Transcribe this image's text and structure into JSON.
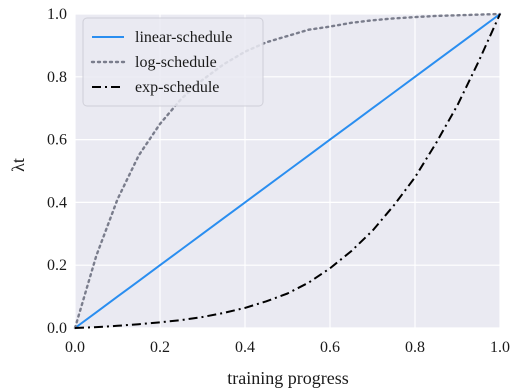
{
  "chart_data": {
    "type": "line",
    "xlabel": "training progress",
    "ylabel": "λt",
    "xlim": [
      0.0,
      1.0
    ],
    "ylim": [
      0.0,
      1.0
    ],
    "x_ticks": [
      0.0,
      0.2,
      0.4,
      0.6,
      0.8,
      1.0
    ],
    "x_tick_labels": [
      "0.0",
      "0.2",
      "0.4",
      "0.6",
      "0.8",
      "1.0"
    ],
    "y_ticks": [
      0.0,
      0.2,
      0.4,
      0.6,
      0.8,
      1.0
    ],
    "y_tick_labels": [
      "0.0",
      "0.2",
      "0.4",
      "0.6",
      "0.8",
      "1.0"
    ],
    "grid": true,
    "background": "#eaeaf2",
    "legend_position": "top-left",
    "x": [
      0.0,
      0.05,
      0.1,
      0.15,
      0.2,
      0.25,
      0.3,
      0.35,
      0.4,
      0.45,
      0.5,
      0.55,
      0.6,
      0.65,
      0.7,
      0.75,
      0.8,
      0.85,
      0.9,
      0.95,
      1.0
    ],
    "series": [
      {
        "name": "linear-schedule",
        "color": "#2a8ef0",
        "style": "solid",
        "values": [
          0.0,
          0.05,
          0.1,
          0.15,
          0.2,
          0.25,
          0.3,
          0.35,
          0.4,
          0.45,
          0.5,
          0.55,
          0.6,
          0.65,
          0.7,
          0.75,
          0.8,
          0.85,
          0.9,
          0.95,
          1.0
        ]
      },
      {
        "name": "log-schedule",
        "color": "#7a7d8c",
        "style": "dotted",
        "values": [
          0.0,
          0.23,
          0.41,
          0.55,
          0.65,
          0.73,
          0.79,
          0.84,
          0.88,
          0.91,
          0.93,
          0.95,
          0.96,
          0.972,
          0.98,
          0.986,
          0.99,
          0.994,
          0.996,
          0.998,
          1.0
        ]
      },
      {
        "name": "exp-schedule",
        "color": "#000000",
        "style": "dashdot",
        "values": [
          0.0,
          0.003,
          0.007,
          0.012,
          0.018,
          0.025,
          0.035,
          0.048,
          0.064,
          0.085,
          0.11,
          0.145,
          0.19,
          0.245,
          0.31,
          0.39,
          0.48,
          0.59,
          0.71,
          0.85,
          1.0
        ]
      }
    ]
  }
}
